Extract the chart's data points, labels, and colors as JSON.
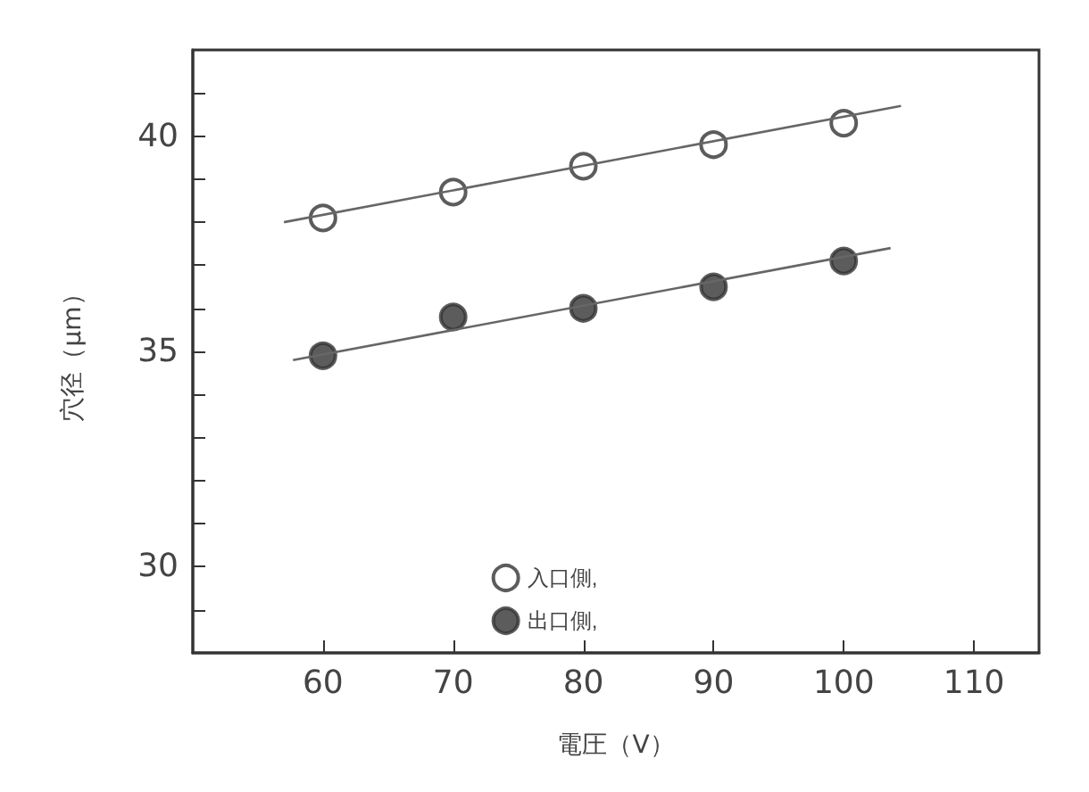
{
  "chart_data": {
    "type": "scatter",
    "xlabel": "電圧（V）",
    "ylabel": "穴径（μm）",
    "xlim": [
      50,
      115
    ],
    "xticks": [
      60,
      70,
      80,
      90,
      100,
      110
    ],
    "ylim": [
      28,
      42
    ],
    "yticks": [
      {
        "value": 29,
        "label": null
      },
      30,
      {
        "value": 31,
        "label": null
      },
      {
        "value": 32,
        "label": null
      },
      {
        "value": 33,
        "label": null
      },
      {
        "value": 34,
        "label": null
      },
      35,
      {
        "value": 36,
        "label": null
      },
      {
        "value": 37,
        "label": null
      },
      {
        "value": 38,
        "label": null
      },
      {
        "value": 39,
        "label": null
      },
      40,
      {
        "value": 41,
        "label": null
      }
    ],
    "grid": false,
    "legend": "bottom",
    "series": [
      {
        "name": "入口側,",
        "color": "#ffffff",
        "marker": "circle",
        "x": [
          60,
          70,
          80,
          90,
          100
        ],
        "values": [
          38.1,
          38.7,
          39.3,
          39.8,
          40.3
        ]
      },
      {
        "name": "出口側,",
        "color": "#333333",
        "marker": "circle",
        "x": [
          60,
          70,
          80,
          90,
          100
        ],
        "values": [
          34.9,
          35.8,
          36.0,
          36.5,
          37.1
        ]
      },
      {
        "type": "line",
        "color": "#666666",
        "marker": "none",
        "x": [
          57,
          104.4
        ],
        "values": [
          38.0,
          40.7
        ]
      },
      {
        "type": "line",
        "color": "#666666",
        "marker": "none",
        "x": [
          57.7,
          103.6
        ],
        "values": [
          34.8,
          37.4
        ]
      }
    ]
  }
}
